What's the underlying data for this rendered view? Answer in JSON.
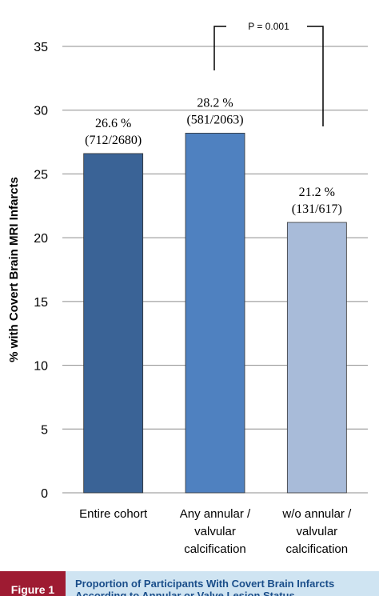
{
  "chart_data": {
    "type": "bar",
    "categories": [
      [
        "Entire cohort"
      ],
      [
        "Any annular /",
        "valvular",
        "calcification"
      ],
      [
        "w/o annular /",
        "valvular",
        "calcification"
      ]
    ],
    "values": [
      26.6,
      28.2,
      21.2
    ],
    "data_labels": [
      [
        "26.6 %",
        "(712/2680)"
      ],
      [
        "28.2 %",
        "(581/2063)"
      ],
      [
        "21.2 %",
        "(131/617)"
      ]
    ],
    "colors": [
      "#3a6396",
      "#4f81c0",
      "#a8bbd9"
    ],
    "ylabel": "% with Covert Brain MRI Infarcts",
    "ylim": [
      0,
      35
    ],
    "yticks": [
      0,
      5,
      10,
      15,
      20,
      25,
      30,
      35
    ],
    "grid": true,
    "annotation": "P = 0.001"
  },
  "figure": {
    "label": "Figure 1",
    "caption": "Proportion of Participants With Covert Brain Infarcts According to Annular or Valve Lesion Status"
  }
}
